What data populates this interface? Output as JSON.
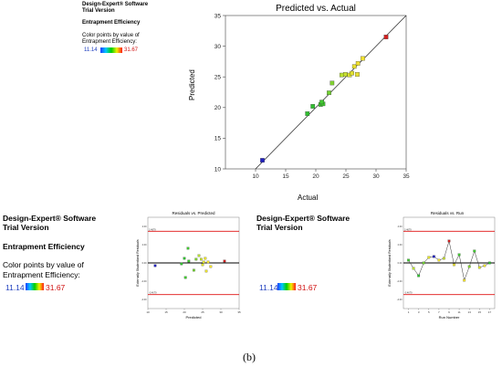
{
  "top_panel": {
    "software": [
      "Design-Expert® Software",
      "Trial Version"
    ],
    "response": "Entrapment Efficiency",
    "color_note": [
      "Color points by value of",
      "Entrapment Efficiency:"
    ],
    "color_min": "11.14",
    "color_max": "31.67"
  },
  "bottom_left_panel": {
    "software": [
      "Design-Expert® Software",
      "Trial Version"
    ],
    "response": "Entrapment Efficiency",
    "color_note": [
      "Color points by value of",
      "Entrapment Efficiency:"
    ],
    "color_min": "11.14",
    "color_max": "31.67"
  },
  "bottom_right_panel": {
    "software": [
      "Design-Expert® Software",
      "Trial Version"
    ],
    "color_min": "11.14",
    "color_max": "31.67"
  },
  "caption": "(b)",
  "chart_data": [
    {
      "type": "scatter",
      "title": "Predicted vs. Actual",
      "xlabel": "Actual",
      "ylabel": "Predicted",
      "xlim": [
        5,
        35
      ],
      "ylim": [
        10,
        35
      ],
      "xticks": [
        "10",
        "15",
        "20",
        "25",
        "30",
        "35"
      ],
      "yticks": [
        "10",
        "15",
        "20",
        "25",
        "30",
        "35"
      ],
      "reference_line": [
        [
          10,
          10
        ],
        [
          35,
          35
        ]
      ],
      "points": [
        {
          "x": 11.14,
          "y": 11.4,
          "color": "#2020c0"
        },
        {
          "x": 18.6,
          "y": 19.0,
          "color": "#30c030"
        },
        {
          "x": 19.5,
          "y": 20.2,
          "color": "#30c030"
        },
        {
          "x": 20.8,
          "y": 20.5,
          "color": "#40c830"
        },
        {
          "x": 21.2,
          "y": 20.6,
          "color": "#40c830"
        },
        {
          "x": 21.0,
          "y": 20.9,
          "color": "#40c830"
        },
        {
          "x": 22.2,
          "y": 22.4,
          "color": "#70d030"
        },
        {
          "x": 22.7,
          "y": 24.0,
          "color": "#80d030"
        },
        {
          "x": 24.3,
          "y": 25.3,
          "color": "#b8e030"
        },
        {
          "x": 24.9,
          "y": 25.4,
          "color": "#c8e030"
        },
        {
          "x": 25.6,
          "y": 25.3,
          "color": "#d8e030"
        },
        {
          "x": 26.0,
          "y": 25.6,
          "color": "#e0e030"
        },
        {
          "x": 26.4,
          "y": 26.7,
          "color": "#e8e030"
        },
        {
          "x": 26.9,
          "y": 25.4,
          "color": "#e8e030"
        },
        {
          "x": 27.0,
          "y": 27.2,
          "color": "#f0e030"
        },
        {
          "x": 27.8,
          "y": 28.0,
          "color": "#f0e030"
        },
        {
          "x": 31.67,
          "y": 31.5,
          "color": "#d02020"
        }
      ]
    },
    {
      "type": "scatter",
      "title": "Residuals vs. Predicted",
      "xlabel": "Predicted",
      "ylabel": "Externally Studentized Residuals",
      "xlim": [
        10,
        35
      ],
      "ylim": [
        -5,
        5
      ],
      "xticks": [
        "10",
        "15",
        "20",
        "25",
        "30",
        "35"
      ],
      "yticks": [
        "4.00",
        "2.00",
        "0.00",
        "-2.00",
        "-4.00"
      ],
      "limit_lines": [
        3.4679,
        -3.4679
      ],
      "limit_labels": [
        "3.4679",
        "-3.4679"
      ],
      "points": [
        {
          "x": 12.0,
          "y": -0.3,
          "color": "#2020c0"
        },
        {
          "x": 19.2,
          "y": -0.1,
          "color": "#30c030"
        },
        {
          "x": 20.0,
          "y": 0.5,
          "color": "#30c030"
        },
        {
          "x": 20.3,
          "y": -1.6,
          "color": "#40c830"
        },
        {
          "x": 21.0,
          "y": 1.6,
          "color": "#40c830"
        },
        {
          "x": 21.2,
          "y": 0.2,
          "color": "#40c830"
        },
        {
          "x": 22.6,
          "y": -0.8,
          "color": "#70d030"
        },
        {
          "x": 23.2,
          "y": 0.4,
          "color": "#80d030"
        },
        {
          "x": 24.0,
          "y": 0.8,
          "color": "#b8e030"
        },
        {
          "x": 24.6,
          "y": 0.4,
          "color": "#c8e030"
        },
        {
          "x": 25.0,
          "y": -0.2,
          "color": "#d8e030"
        },
        {
          "x": 25.3,
          "y": 0.1,
          "color": "#e0e030"
        },
        {
          "x": 25.7,
          "y": 0.5,
          "color": "#e8e030"
        },
        {
          "x": 26.0,
          "y": -0.9,
          "color": "#e8e030"
        },
        {
          "x": 26.5,
          "y": 0.1,
          "color": "#f0e030"
        },
        {
          "x": 27.2,
          "y": -0.4,
          "color": "#f0e030"
        },
        {
          "x": 31.0,
          "y": 0.2,
          "color": "#d02020"
        }
      ]
    },
    {
      "type": "line",
      "title": "Residuals vs. Run",
      "xlabel": "Run Number",
      "ylabel": "Externally Studentized Residuals",
      "xlim": [
        0,
        18
      ],
      "ylim": [
        -5,
        5
      ],
      "xticks": [
        "1",
        "3",
        "5",
        "7",
        "9",
        "11",
        "13",
        "15",
        "17"
      ],
      "yticks": [
        "4.00",
        "2.00",
        "0.00",
        "-2.00",
        "-4.00"
      ],
      "limit_lines": [
        3.4679,
        -3.4679
      ],
      "limit_labels": [
        "3.4679",
        "-3.4679"
      ],
      "x": [
        1,
        2,
        3,
        4,
        5,
        6,
        7,
        8,
        9,
        10,
        11,
        12,
        13,
        14,
        15,
        16,
        17
      ],
      "y": [
        0.3,
        -0.6,
        -1.4,
        0.0,
        0.6,
        0.7,
        0.3,
        0.5,
        2.4,
        -0.2,
        0.9,
        -1.9,
        -0.4,
        1.3,
        -0.5,
        -0.3,
        0.0
      ],
      "colors": [
        "#40c830",
        "#b8e030",
        "#30c030",
        "#70d030",
        "#e0e030",
        "#2020c0",
        "#f0e030",
        "#c8e030",
        "#d02020",
        "#e8e030",
        "#40c830",
        "#f0e030",
        "#80d030",
        "#40c830",
        "#d8e030",
        "#e8e030",
        "#30c030"
      ]
    }
  ]
}
